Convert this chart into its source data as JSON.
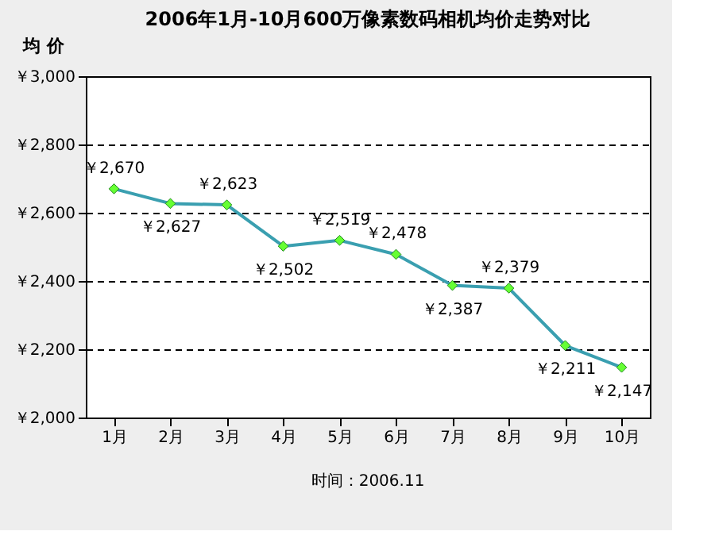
{
  "chart_data": {
    "type": "line",
    "title": "2006年1月-10月600万像素数码相机均价走势对比",
    "ylabel": "均 价",
    "categories": [
      "1月",
      "2月",
      "3月",
      "4月",
      "5月",
      "6月",
      "7月",
      "8月",
      "9月",
      "10月"
    ],
    "series": [
      {
        "color": "#3a9fb0",
        "values": [
          2670,
          2627,
          2623,
          2502,
          2519,
          2478,
          2387,
          2379,
          2211,
          2147
        ],
        "value_labels": [
          "￥2,670",
          "￥2,627",
          "￥2,623",
          "￥2,502",
          "￥2,519",
          "￥2,478",
          "￥2,387",
          "￥2,379",
          "￥2,211",
          "￥2,147"
        ]
      }
    ],
    "ylim": [
      2000,
      3000
    ],
    "yticks": [
      {
        "value": 2000,
        "label": "￥2,000"
      },
      {
        "value": 2200,
        "label": "￥2,200"
      },
      {
        "value": 2400,
        "label": "￥2,400"
      },
      {
        "value": 2600,
        "label": "￥2,600"
      },
      {
        "value": 2800,
        "label": "￥2,800"
      },
      {
        "value": 3000,
        "label": "￥3,000"
      }
    ],
    "grid": "y",
    "marker": "diamond",
    "line_style": "solid",
    "annotations": [
      "时间：2006.11"
    ]
  }
}
